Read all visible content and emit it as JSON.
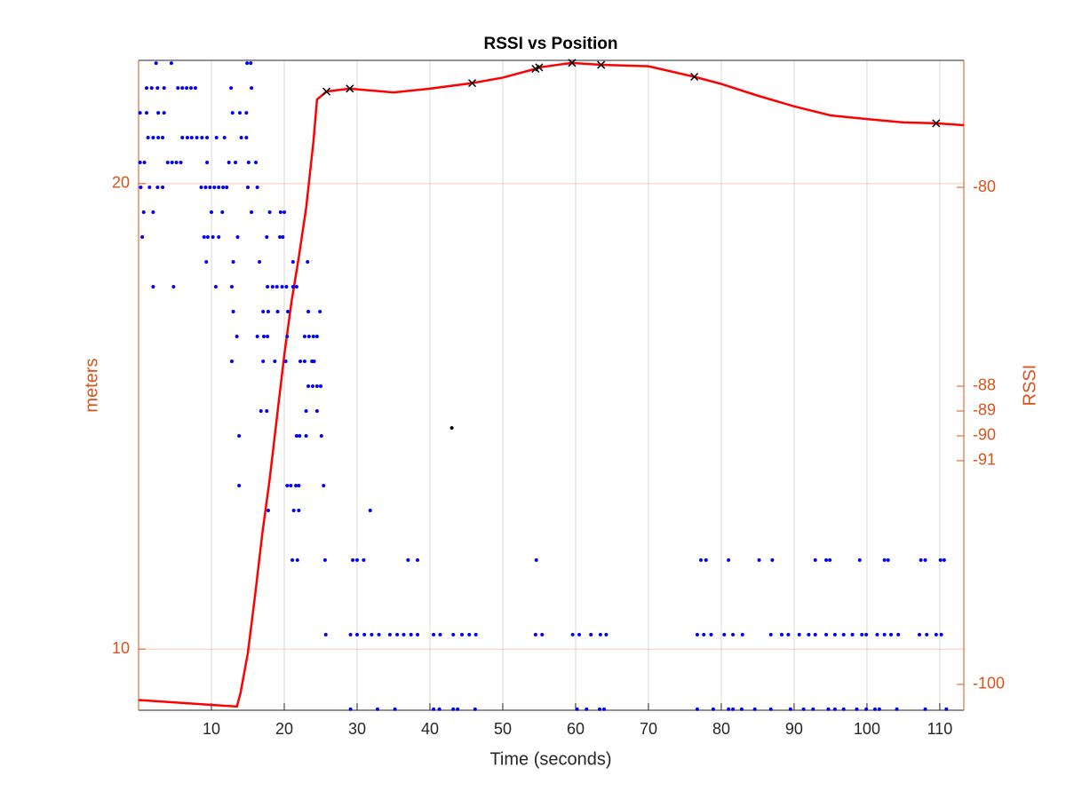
{
  "chart_data": {
    "type": "line",
    "title": "RSSI vs Position",
    "x_label": "Time (seconds)",
    "y_label": "meters",
    "y2_label": "RSSI",
    "xlim": [
      0,
      113.3
    ],
    "xticks": [
      10,
      20,
      30,
      40,
      50,
      60,
      70,
      80,
      90,
      100,
      110
    ],
    "ylim": [
      9.13,
      24.03
    ],
    "yticks": [
      10,
      20
    ],
    "log_y": true,
    "y2lim": [
      -101.04,
      -74.89
    ],
    "y2ticks": [
      -100,
      -91,
      -90,
      -89,
      -88,
      -80
    ],
    "axis_color": "#d95319",
    "grid": true,
    "series": [
      {
        "style": "line",
        "color": "#ff0000",
        "x": [
          0,
          13.5,
          14,
          15,
          16,
          17,
          18,
          19,
          20,
          21,
          22,
          23,
          24,
          24.5,
          25.8,
          29,
          35,
          40,
          45.8,
          50,
          54.5,
          55,
          59.5,
          63.5,
          70,
          76.3,
          80,
          85,
          90,
          95,
          100,
          105,
          109.5,
          113.3
        ],
        "values": [
          9.27,
          9.18,
          9.37,
          9.94,
          10.84,
          11.89,
          12.88,
          14.13,
          15.49,
          16.78,
          17.93,
          19.28,
          21.28,
          22.67,
          22.94,
          23.04,
          22.91,
          23.04,
          23.23,
          23.42,
          23.73,
          23.78,
          23.94,
          23.87,
          23.82,
          23.45,
          23.2,
          22.8,
          22.44,
          22.14,
          22.02,
          21.91,
          21.88,
          21.82
        ]
      },
      {
        "style": "x",
        "color": "#000000",
        "x": [
          25.8,
          29,
          45.8,
          54.5,
          55,
          59.5,
          63.5,
          76.3,
          109.5
        ],
        "values": [
          22.94,
          23.04,
          23.23,
          23.73,
          23.78,
          23.94,
          23.87,
          23.45,
          21.88
        ]
      },
      {
        "style": "dots",
        "color": "#0000ff",
        "axis": "y2",
        "x": [
          2.4,
          4.5,
          14.9,
          15.4,
          1.1,
          1.8,
          2.6,
          3.5,
          5.4,
          6.0,
          6.6,
          7.2,
          7.8,
          12.7,
          15.5,
          0.2,
          1.1,
          2.7,
          3.5,
          12.9,
          13.9,
          14.8,
          1.3,
          2.0,
          2.7,
          3.3,
          6.0,
          6.7,
          7.3,
          8.0,
          8.7,
          9.4,
          10.7,
          11.8,
          14.1,
          14.8,
          0.2,
          0.8,
          4.0,
          4.6,
          5.2,
          5.8,
          9.4,
          12.4,
          13.3,
          15.1,
          16.1,
          0.3,
          1.5,
          2.6,
          3.3,
          8.6,
          9.2,
          9.8,
          10.4,
          11.0,
          11.6,
          12.1,
          15.0,
          16.3,
          0.7,
          2.0,
          10.0,
          11.5,
          15.5,
          18.0,
          19.5,
          20.0,
          0.5,
          9.0,
          9.5,
          10.2,
          11.0,
          13.6,
          17.6,
          19.4,
          19.8,
          9.3,
          13.0,
          16.6,
          21.2,
          23.2,
          2.0,
          4.8,
          10.6,
          12.8,
          17.7,
          18.4,
          19.0,
          19.7,
          20.3,
          21.2,
          21.7,
          13.0,
          17.1,
          17.8,
          19.1,
          20.5,
          23.3,
          24.9,
          13.5,
          16.3,
          17.2,
          17.7,
          20.4,
          22.8,
          23.4,
          24.0,
          24.5,
          12.8,
          17.1,
          18.7,
          20.2,
          22.2,
          22.8,
          23.8,
          24.1,
          23.3,
          23.9,
          24.5,
          25.0,
          16.8,
          17.6,
          23.0,
          24.5,
          13.8,
          21.7,
          22.1,
          23.0,
          25.1,
          13.8,
          20.4,
          20.9,
          21.6,
          22.0,
          25.4,
          17.8,
          21.3,
          22.0,
          31.8,
          21.1,
          21.8,
          25.6,
          29.4,
          30.0,
          30.9,
          37.0,
          38.3,
          54.6,
          77.2,
          77.9,
          81.0,
          85.2,
          87.0,
          92.9,
          94.4,
          94.9,
          99.0,
          102.4,
          102.9,
          107.4,
          108.0,
          110.1,
          110.6,
          25.7,
          29.1,
          30.0,
          31.0,
          32.0,
          33.0,
          34.5,
          35.5,
          36.4,
          37.4,
          38.3,
          40.5,
          41.4,
          43.2,
          44.4,
          45.4,
          46.3,
          54.5,
          55.4,
          59.6,
          60.5,
          62.1,
          63.4,
          64.2,
          76.7,
          77.6,
          78.6,
          80.4,
          81.6,
          82.9,
          86.8,
          88.3,
          89.2,
          90.7,
          92.0,
          92.9,
          94.4,
          95.6,
          96.8,
          98.0,
          99.3,
          99.9,
          101.4,
          102.4,
          103.3,
          104.3,
          107.2,
          108.2,
          109.5,
          110.2,
          29.1,
          32.8,
          35.2,
          40.5,
          41.3,
          43.2,
          43.8,
          46.2,
          60.2,
          61.5,
          63.3,
          63.9,
          76.7,
          78.9,
          81.0,
          81.6,
          82.8,
          84.6,
          86.8,
          89.5,
          91.3,
          92.6,
          94.7,
          95.6,
          96.8,
          98.6,
          99.9,
          101.1,
          101.7,
          104.1,
          108.0,
          110.9
        ],
        "values": [
          -75,
          -75,
          -75,
          -75,
          -76,
          -76,
          -76,
          -76,
          -76,
          -76,
          -76,
          -76,
          -76,
          -76,
          -76,
          -77,
          -77,
          -77,
          -77,
          -77,
          -77,
          -77,
          -78,
          -78,
          -78,
          -78,
          -78,
          -78,
          -78,
          -78,
          -78,
          -78,
          -78,
          -78,
          -78,
          -78,
          -79,
          -79,
          -79,
          -79,
          -79,
          -79,
          -79,
          -79,
          -79,
          -79,
          -79,
          -80,
          -80,
          -80,
          -80,
          -80,
          -80,
          -80,
          -80,
          -80,
          -80,
          -80,
          -80,
          -80,
          -81,
          -81,
          -81,
          -81,
          -81,
          -81,
          -81,
          -81,
          -82,
          -82,
          -82,
          -82,
          -82,
          -82,
          -82,
          -82,
          -82,
          -83,
          -83,
          -83,
          -83,
          -83,
          -84,
          -84,
          -84,
          -84,
          -84,
          -84,
          -84,
          -84,
          -84,
          -84,
          -84,
          -85,
          -85,
          -85,
          -85,
          -85,
          -85,
          -85,
          -86,
          -86,
          -86,
          -86,
          -86,
          -86,
          -86,
          -86,
          -86,
          -87,
          -87,
          -87,
          -87,
          -87,
          -87,
          -87,
          -87,
          -88,
          -88,
          -88,
          -88,
          -89,
          -89,
          -89,
          -89,
          -90,
          -90,
          -90,
          -90,
          -90,
          -92,
          -92,
          -92,
          -92,
          -92,
          -92,
          -93,
          -93,
          -93,
          -93,
          -95,
          -95,
          -95,
          -95,
          -95,
          -95,
          -95,
          -95,
          -95,
          -95,
          -95,
          -95,
          -95,
          -95,
          -95,
          -95,
          -95,
          -95,
          -95,
          -95,
          -95,
          -95,
          -95,
          -95,
          -98,
          -98,
          -98,
          -98,
          -98,
          -98,
          -98,
          -98,
          -98,
          -98,
          -98,
          -98,
          -98,
          -98,
          -98,
          -98,
          -98,
          -98,
          -98,
          -98,
          -98,
          -98,
          -98,
          -98,
          -98,
          -98,
          -98,
          -98,
          -98,
          -98,
          -98,
          -98,
          -98,
          -98,
          -98,
          -98,
          -98,
          -98,
          -98,
          -98,
          -98,
          -98,
          -98,
          -98,
          -98,
          -98,
          -98,
          -98,
          -98,
          -98,
          -101,
          -101,
          -101,
          -101,
          -101,
          -101,
          -101,
          -101,
          -101,
          -101,
          -101,
          -101,
          -101,
          -101,
          -101,
          -101,
          -101,
          -101,
          -101,
          -101,
          -101,
          -101,
          -101,
          -101,
          -101,
          -101,
          -101,
          -101,
          -101,
          -101,
          -101,
          -101
        ]
      },
      {
        "style": "dot",
        "color": "#000000",
        "axis": "y2",
        "x": [
          43
        ],
        "values": [
          -89.68
        ]
      }
    ]
  }
}
